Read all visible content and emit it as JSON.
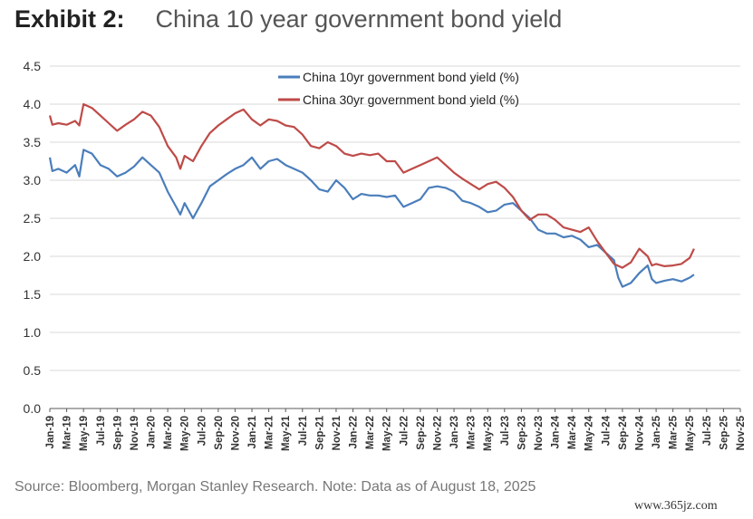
{
  "header": {
    "exhibit_label": "Exhibit 2:",
    "title": "China 10 year government bond yield"
  },
  "footer": {
    "source": "Source: Bloomberg, Morgan Stanley Research. Note: Data as of August 18, 2025",
    "watermark": "www.365jz.com"
  },
  "colors": {
    "series_10yr": "#4a7ebb",
    "series_30yr": "#be4b48",
    "grid": "#d9d9d9",
    "axis": "#595959"
  },
  "chart_data": {
    "type": "line",
    "title": "China 10 year government bond yield",
    "xlabel": "",
    "ylabel": "",
    "ylim": [
      0,
      4.5
    ],
    "y_ticks": [
      "0.0",
      "0.5",
      "1.0",
      "1.5",
      "2.0",
      "2.5",
      "3.0",
      "3.5",
      "4.0",
      "4.5"
    ],
    "x_ticks": [
      "Jan-19",
      "Mar-19",
      "May-19",
      "Jul-19",
      "Sep-19",
      "Nov-19",
      "Jan-20",
      "Mar-20",
      "May-20",
      "Jul-20",
      "Sep-20",
      "Nov-20",
      "Jan-21",
      "Mar-21",
      "May-21",
      "Jul-21",
      "Sep-21",
      "Nov-21",
      "Jan-22",
      "Mar-22",
      "May-22",
      "Jul-22",
      "Sep-22",
      "Nov-22",
      "Jan-23",
      "Mar-23",
      "May-23",
      "Jul-23",
      "Sep-23",
      "Nov-23",
      "Jan-24",
      "Mar-24",
      "May-24",
      "Jul-24",
      "Sep-24",
      "Nov-24",
      "Jan-25",
      "Mar-25",
      "May-25",
      "Jul-25",
      "Sep-25",
      "Nov-25"
    ],
    "x_unit": "months since Jan-19",
    "x_max": 82,
    "grid": true,
    "legend_position": "top-center",
    "series": [
      {
        "name": "China 10yr government bond yield (%)",
        "color": "#4a7ebb",
        "points": [
          [
            0,
            3.3
          ],
          [
            0.3,
            3.12
          ],
          [
            1,
            3.15
          ],
          [
            2,
            3.1
          ],
          [
            3,
            3.2
          ],
          [
            3.5,
            3.05
          ],
          [
            4,
            3.4
          ],
          [
            5,
            3.35
          ],
          [
            6,
            3.2
          ],
          [
            7,
            3.15
          ],
          [
            8,
            3.05
          ],
          [
            9,
            3.1
          ],
          [
            10,
            3.18
          ],
          [
            11,
            3.3
          ],
          [
            12,
            3.2
          ],
          [
            13,
            3.1
          ],
          [
            14,
            2.85
          ],
          [
            15,
            2.65
          ],
          [
            15.5,
            2.55
          ],
          [
            16,
            2.7
          ],
          [
            17,
            2.5
          ],
          [
            18,
            2.7
          ],
          [
            19,
            2.92
          ],
          [
            20,
            3.0
          ],
          [
            21,
            3.08
          ],
          [
            22,
            3.15
          ],
          [
            23,
            3.2
          ],
          [
            24,
            3.3
          ],
          [
            25,
            3.15
          ],
          [
            26,
            3.25
          ],
          [
            27,
            3.28
          ],
          [
            28,
            3.2
          ],
          [
            29,
            3.15
          ],
          [
            30,
            3.1
          ],
          [
            31,
            3.0
          ],
          [
            32,
            2.88
          ],
          [
            33,
            2.85
          ],
          [
            34,
            3.0
          ],
          [
            35,
            2.9
          ],
          [
            36,
            2.75
          ],
          [
            37,
            2.82
          ],
          [
            38,
            2.8
          ],
          [
            39,
            2.8
          ],
          [
            40,
            2.78
          ],
          [
            41,
            2.8
          ],
          [
            42,
            2.65
          ],
          [
            43,
            2.7
          ],
          [
            44,
            2.75
          ],
          [
            45,
            2.9
          ],
          [
            46,
            2.92
          ],
          [
            47,
            2.9
          ],
          [
            48,
            2.85
          ],
          [
            49,
            2.73
          ],
          [
            50,
            2.7
          ],
          [
            51,
            2.65
          ],
          [
            52,
            2.58
          ],
          [
            53,
            2.6
          ],
          [
            54,
            2.68
          ],
          [
            55,
            2.7
          ],
          [
            56,
            2.6
          ],
          [
            57,
            2.5
          ],
          [
            58,
            2.35
          ],
          [
            59,
            2.3
          ],
          [
            60,
            2.3
          ],
          [
            61,
            2.25
          ],
          [
            62,
            2.27
          ],
          [
            63,
            2.22
          ],
          [
            64,
            2.12
          ],
          [
            65,
            2.15
          ],
          [
            66,
            2.05
          ],
          [
            67,
            1.95
          ],
          [
            67.5,
            1.72
          ],
          [
            68,
            1.6
          ],
          [
            69,
            1.65
          ],
          [
            70,
            1.78
          ],
          [
            71,
            1.88
          ],
          [
            71.5,
            1.7
          ],
          [
            72,
            1.65
          ],
          [
            73,
            1.68
          ],
          [
            74,
            1.7
          ],
          [
            75,
            1.67
          ],
          [
            76,
            1.72
          ],
          [
            76.5,
            1.76
          ]
        ]
      },
      {
        "name": "China 30yr government bond yield (%)",
        "color": "#be4b48",
        "points": [
          [
            0,
            3.85
          ],
          [
            0.3,
            3.73
          ],
          [
            1,
            3.75
          ],
          [
            2,
            3.73
          ],
          [
            3,
            3.78
          ],
          [
            3.5,
            3.72
          ],
          [
            4,
            4.0
          ],
          [
            5,
            3.95
          ],
          [
            6,
            3.85
          ],
          [
            7,
            3.75
          ],
          [
            8,
            3.65
          ],
          [
            9,
            3.73
          ],
          [
            10,
            3.8
          ],
          [
            11,
            3.9
          ],
          [
            12,
            3.85
          ],
          [
            13,
            3.7
          ],
          [
            14,
            3.45
          ],
          [
            15,
            3.3
          ],
          [
            15.5,
            3.15
          ],
          [
            16,
            3.32
          ],
          [
            17,
            3.25
          ],
          [
            18,
            3.45
          ],
          [
            19,
            3.62
          ],
          [
            20,
            3.72
          ],
          [
            21,
            3.8
          ],
          [
            22,
            3.88
          ],
          [
            23,
            3.93
          ],
          [
            24,
            3.8
          ],
          [
            25,
            3.72
          ],
          [
            26,
            3.8
          ],
          [
            27,
            3.78
          ],
          [
            28,
            3.72
          ],
          [
            29,
            3.7
          ],
          [
            30,
            3.6
          ],
          [
            31,
            3.45
          ],
          [
            32,
            3.42
          ],
          [
            33,
            3.5
          ],
          [
            34,
            3.45
          ],
          [
            35,
            3.35
          ],
          [
            36,
            3.32
          ],
          [
            37,
            3.35
          ],
          [
            38,
            3.33
          ],
          [
            39,
            3.35
          ],
          [
            40,
            3.25
          ],
          [
            41,
            3.25
          ],
          [
            42,
            3.1
          ],
          [
            43,
            3.15
          ],
          [
            44,
            3.2
          ],
          [
            45,
            3.25
          ],
          [
            46,
            3.3
          ],
          [
            47,
            3.2
          ],
          [
            48,
            3.1
          ],
          [
            49,
            3.02
          ],
          [
            50,
            2.95
          ],
          [
            51,
            2.88
          ],
          [
            52,
            2.95
          ],
          [
            53,
            2.98
          ],
          [
            54,
            2.9
          ],
          [
            55,
            2.78
          ],
          [
            56,
            2.6
          ],
          [
            57,
            2.48
          ],
          [
            58,
            2.55
          ],
          [
            59,
            2.55
          ],
          [
            60,
            2.48
          ],
          [
            61,
            2.38
          ],
          [
            62,
            2.35
          ],
          [
            63,
            2.32
          ],
          [
            64,
            2.38
          ],
          [
            65,
            2.2
          ],
          [
            66,
            2.05
          ],
          [
            67,
            1.9
          ],
          [
            68,
            1.85
          ],
          [
            69,
            1.92
          ],
          [
            70,
            2.1
          ],
          [
            71,
            2.0
          ],
          [
            71.5,
            1.88
          ],
          [
            72,
            1.9
          ],
          [
            73,
            1.87
          ],
          [
            74,
            1.88
          ],
          [
            75,
            1.9
          ],
          [
            76,
            1.98
          ],
          [
            76.5,
            2.1
          ]
        ]
      }
    ]
  }
}
